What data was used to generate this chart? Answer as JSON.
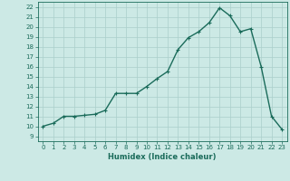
{
  "x": [
    0,
    1,
    2,
    3,
    4,
    5,
    6,
    7,
    8,
    9,
    10,
    11,
    12,
    13,
    14,
    15,
    16,
    17,
    18,
    19,
    20,
    21,
    22,
    23
  ],
  "y": [
    10.0,
    10.3,
    11.0,
    11.0,
    11.1,
    11.2,
    11.6,
    13.3,
    13.3,
    13.3,
    14.0,
    14.8,
    15.5,
    17.7,
    18.9,
    19.5,
    20.4,
    21.9,
    21.1,
    19.5,
    19.8,
    16.0,
    11.0,
    9.7
  ],
  "line_color": "#1a6b5a",
  "marker": "+",
  "marker_size": 3,
  "line_width": 1.0,
  "bg_color": "#cce9e5",
  "grid_color": "#aacfcb",
  "tick_color": "#1a6b5a",
  "label_color": "#1a6b5a",
  "xlabel": "Humidex (Indice chaleur)",
  "xlim": [
    -0.5,
    23.5
  ],
  "ylim": [
    8.5,
    22.5
  ],
  "yticks": [
    9,
    10,
    11,
    12,
    13,
    14,
    15,
    16,
    17,
    18,
    19,
    20,
    21,
    22
  ],
  "xticks": [
    0,
    1,
    2,
    3,
    4,
    5,
    6,
    7,
    8,
    9,
    10,
    11,
    12,
    13,
    14,
    15,
    16,
    17,
    18,
    19,
    20,
    21,
    22,
    23
  ]
}
